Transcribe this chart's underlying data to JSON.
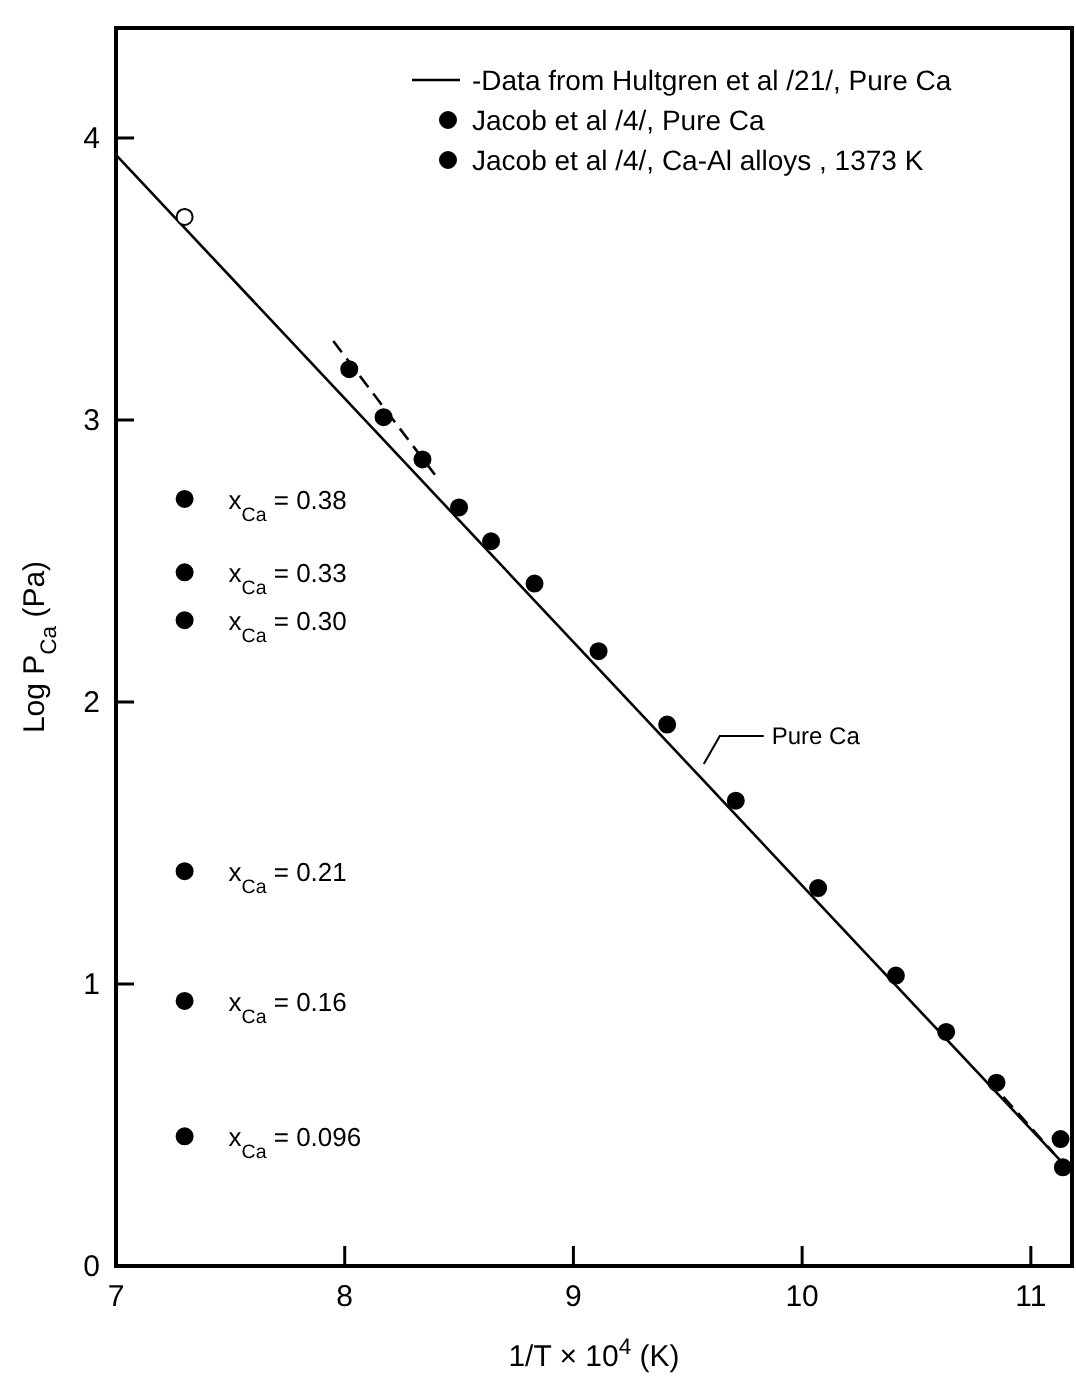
{
  "chart_data": {
    "type": "scatter",
    "xlabel": "1/T × 10$^{4}$ (K)",
    "ylabel": "Log P$_{Ca}$ (Pa)",
    "xlim": [
      7,
      11.18
    ],
    "ylim": [
      0,
      4.39
    ],
    "xticks": [
      7,
      8,
      9,
      10,
      11
    ],
    "yticks": [
      0,
      1,
      2,
      3,
      4
    ],
    "grid": false,
    "legend": "top right",
    "series": [
      {
        "type": "line",
        "name": "-Data from Hultgren et al /21/, Pure Ca",
        "color": "#000000",
        "line_style": "solid",
        "marker": "none",
        "x": [
          7,
          11.18
        ],
        "values": [
          3.94,
          0.33
        ]
      },
      {
        "name": "Jacob et al /4/, Pure Ca",
        "color": "#000000",
        "marker": "circle",
        "x": [
          8.02,
          8.17,
          8.34,
          8.5,
          8.64,
          8.83,
          9.11,
          9.41,
          9.71,
          10.07,
          10.41,
          10.63,
          10.85,
          11.13,
          11.14
        ],
        "values": [
          3.18,
          3.01,
          2.86,
          2.69,
          2.57,
          2.42,
          2.18,
          1.92,
          1.65,
          1.34,
          1.03,
          0.83,
          0.65,
          0.45,
          0.35
        ]
      },
      {
        "name": "Jacob et al /4/, Ca-Al alloys , 1373 K",
        "color": "#000000",
        "marker": "circle",
        "x": [
          7.3,
          7.3,
          7.3,
          7.3,
          7.3,
          7.3
        ],
        "values": [
          2.72,
          2.46,
          2.29,
          1.4,
          0.94,
          0.46
        ]
      },
      {
        "color": "#ffffff",
        "marker": "circle",
        "x": [
          7.3
        ],
        "values": [
          3.72
        ]
      },
      {
        "type": "line",
        "color": "#000000",
        "line_style": "dashed",
        "marker": "none",
        "x": [
          7.95,
          8.4
        ],
        "values": [
          3.28,
          2.8
        ]
      },
      {
        "type": "line",
        "color": "#000000",
        "line_style": "dashed",
        "marker": "none",
        "x": [
          10.88,
          11.1
        ],
        "values": [
          0.6,
          0.4
        ]
      }
    ],
    "annotations": [
      "x$_{Ca}$ = 0.38",
      "x$_{Ca}$ = 0.33",
      "x$_{Ca}$ = 0.30",
      "x$_{Ca}$ = 0.21",
      "x$_{Ca}$ = 0.16",
      "x$_{Ca}$ = 0.096",
      "Pure Ca"
    ]
  }
}
